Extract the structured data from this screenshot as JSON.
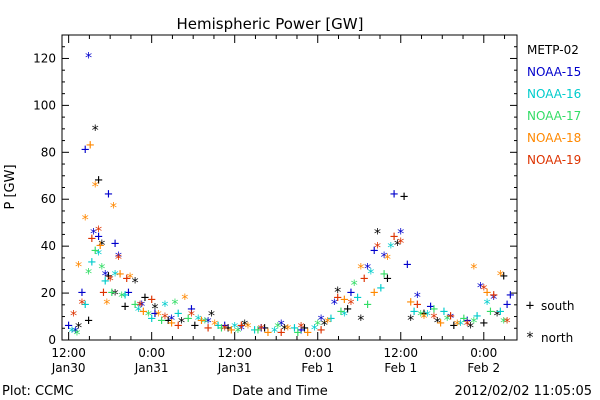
{
  "chart_data": {
    "type": "scatter",
    "title": "Hemispheric Power [GW]",
    "ylabel": "P [GW]",
    "xlabel": "Date and Time",
    "ylim": [
      0,
      130
    ],
    "xlim": [
      -0.04,
      2.7
    ],
    "x_unit": "days since 2012-01-30 12:00",
    "yticks": [
      0,
      20,
      40,
      60,
      80,
      100,
      120
    ],
    "xticks": [
      {
        "at": 0.0,
        "line1": "12:00",
        "line2": "Jan30"
      },
      {
        "at": 0.5,
        "line1": "0:00",
        "line2": "Jan31"
      },
      {
        "at": 1.0,
        "line1": "12:00",
        "line2": "Jan31"
      },
      {
        "at": 1.5,
        "line1": "0:00",
        "line2": "Feb 1"
      },
      {
        "at": 2.0,
        "line1": "12:00",
        "line2": "Feb 1"
      },
      {
        "at": 2.5,
        "line1": "0:00",
        "line2": "Feb 2"
      }
    ],
    "legend_position": "right",
    "marker_legend": [
      {
        "symbol": "+",
        "label": "south"
      },
      {
        "symbol": "*",
        "label": "north"
      }
    ],
    "series": [
      {
        "name": "METP-02",
        "color": "#000000",
        "points": [
          {
            "x": 0.06,
            "y": 5,
            "m": "*"
          },
          {
            "x": 0.12,
            "y": 8,
            "m": "+"
          },
          {
            "x": 0.16,
            "y": 89,
            "m": "*"
          },
          {
            "x": 0.18,
            "y": 68,
            "m": "+"
          },
          {
            "x": 0.2,
            "y": 40,
            "m": "*"
          },
          {
            "x": 0.24,
            "y": 27,
            "m": "+"
          },
          {
            "x": 0.28,
            "y": 19,
            "m": "*"
          },
          {
            "x": 0.34,
            "y": 14,
            "m": "+"
          },
          {
            "x": 0.4,
            "y": 24,
            "m": "*"
          },
          {
            "x": 0.46,
            "y": 18,
            "m": "+"
          },
          {
            "x": 0.52,
            "y": 13,
            "m": "*"
          },
          {
            "x": 0.6,
            "y": 8,
            "m": "+"
          },
          {
            "x": 0.68,
            "y": 7,
            "m": "*"
          },
          {
            "x": 0.76,
            "y": 6,
            "m": "+"
          },
          {
            "x": 0.86,
            "y": 10,
            "m": "*"
          },
          {
            "x": 0.96,
            "y": 5,
            "m": "+"
          },
          {
            "x": 1.06,
            "y": 6,
            "m": "*"
          },
          {
            "x": 1.18,
            "y": 5,
            "m": "+"
          },
          {
            "x": 1.3,
            "y": 4,
            "m": "*"
          },
          {
            "x": 1.42,
            "y": 5,
            "m": "+"
          },
          {
            "x": 1.54,
            "y": 6,
            "m": "*"
          },
          {
            "x": 1.62,
            "y": 20,
            "m": "*"
          },
          {
            "x": 1.68,
            "y": 13,
            "m": "+"
          },
          {
            "x": 1.76,
            "y": 8,
            "m": "*"
          },
          {
            "x": 1.86,
            "y": 45,
            "m": "*"
          },
          {
            "x": 1.92,
            "y": 26,
            "m": "+"
          },
          {
            "x": 1.98,
            "y": 40,
            "m": "*"
          },
          {
            "x": 2.02,
            "y": 61,
            "m": "+"
          },
          {
            "x": 2.06,
            "y": 8,
            "m": "*"
          },
          {
            "x": 2.14,
            "y": 11,
            "m": "+"
          },
          {
            "x": 2.22,
            "y": 7,
            "m": "*"
          },
          {
            "x": 2.32,
            "y": 6,
            "m": "+"
          },
          {
            "x": 2.42,
            "y": 5,
            "m": "*"
          },
          {
            "x": 2.5,
            "y": 7,
            "m": "+"
          },
          {
            "x": 2.58,
            "y": 10,
            "m": "*"
          },
          {
            "x": 2.62,
            "y": 27,
            "m": "+"
          }
        ]
      },
      {
        "name": "NOAA-15",
        "color": "#0000cc",
        "points": [
          {
            "x": 0.0,
            "y": 6,
            "m": "+"
          },
          {
            "x": 0.04,
            "y": 3,
            "m": "*"
          },
          {
            "x": 0.08,
            "y": 20,
            "m": "+"
          },
          {
            "x": 0.1,
            "y": 81,
            "m": "+"
          },
          {
            "x": 0.12,
            "y": 120,
            "m": "*"
          },
          {
            "x": 0.15,
            "y": 45,
            "m": "*"
          },
          {
            "x": 0.18,
            "y": 44,
            "m": "+"
          },
          {
            "x": 0.22,
            "y": 27,
            "m": "*"
          },
          {
            "x": 0.24,
            "y": 62,
            "m": "+"
          },
          {
            "x": 0.28,
            "y": 41,
            "m": "+"
          },
          {
            "x": 0.3,
            "y": 35,
            "m": "*"
          },
          {
            "x": 0.36,
            "y": 20,
            "m": "+"
          },
          {
            "x": 0.44,
            "y": 14,
            "m": "*"
          },
          {
            "x": 0.52,
            "y": 11,
            "m": "+"
          },
          {
            "x": 0.62,
            "y": 8,
            "m": "*"
          },
          {
            "x": 0.74,
            "y": 13,
            "m": "+"
          },
          {
            "x": 0.84,
            "y": 7,
            "m": "*"
          },
          {
            "x": 0.94,
            "y": 6,
            "m": "+"
          },
          {
            "x": 1.04,
            "y": 4,
            "m": "*"
          },
          {
            "x": 1.16,
            "y": 5,
            "m": "+"
          },
          {
            "x": 1.28,
            "y": 6,
            "m": "*"
          },
          {
            "x": 1.4,
            "y": 4,
            "m": "+"
          },
          {
            "x": 1.52,
            "y": 8,
            "m": "*"
          },
          {
            "x": 1.6,
            "y": 15,
            "m": "*"
          },
          {
            "x": 1.7,
            "y": 20,
            "m": "+"
          },
          {
            "x": 1.8,
            "y": 30,
            "m": "*"
          },
          {
            "x": 1.84,
            "y": 38,
            "m": "+"
          },
          {
            "x": 1.9,
            "y": 35,
            "m": "*"
          },
          {
            "x": 1.96,
            "y": 62,
            "m": "+"
          },
          {
            "x": 2.0,
            "y": 45,
            "m": "*"
          },
          {
            "x": 2.04,
            "y": 32,
            "m": "+"
          },
          {
            "x": 2.1,
            "y": 18,
            "m": "*"
          },
          {
            "x": 2.18,
            "y": 14,
            "m": "+"
          },
          {
            "x": 2.3,
            "y": 9,
            "m": "*"
          },
          {
            "x": 2.4,
            "y": 8,
            "m": "+"
          },
          {
            "x": 2.48,
            "y": 22,
            "m": "*"
          },
          {
            "x": 2.56,
            "y": 17,
            "m": "*"
          },
          {
            "x": 2.64,
            "y": 15,
            "m": "+"
          },
          {
            "x": 2.66,
            "y": 19,
            "m": "+"
          }
        ]
      },
      {
        "name": "NOAA-16",
        "color": "#00cccc",
        "points": [
          {
            "x": 0.02,
            "y": 3,
            "m": "*"
          },
          {
            "x": 0.1,
            "y": 15,
            "m": "+"
          },
          {
            "x": 0.14,
            "y": 33,
            "m": "+"
          },
          {
            "x": 0.18,
            "y": 36,
            "m": "*"
          },
          {
            "x": 0.22,
            "y": 25,
            "m": "+"
          },
          {
            "x": 0.28,
            "y": 27,
            "m": "*"
          },
          {
            "x": 0.34,
            "y": 19,
            "m": "+"
          },
          {
            "x": 0.42,
            "y": 12,
            "m": "*"
          },
          {
            "x": 0.5,
            "y": 9,
            "m": "+"
          },
          {
            "x": 0.58,
            "y": 14,
            "m": "*"
          },
          {
            "x": 0.66,
            "y": 11,
            "m": "+"
          },
          {
            "x": 0.78,
            "y": 8,
            "m": "*"
          },
          {
            "x": 0.9,
            "y": 6,
            "m": "+"
          },
          {
            "x": 1.0,
            "y": 5,
            "m": "*"
          },
          {
            "x": 1.12,
            "y": 4,
            "m": "+"
          },
          {
            "x": 1.24,
            "y": 3,
            "m": "*"
          },
          {
            "x": 1.36,
            "y": 5,
            "m": "+"
          },
          {
            "x": 1.48,
            "y": 4,
            "m": "*"
          },
          {
            "x": 1.58,
            "y": 9,
            "m": "+"
          },
          {
            "x": 1.66,
            "y": 10,
            "m": "*"
          },
          {
            "x": 1.74,
            "y": 18,
            "m": "+"
          },
          {
            "x": 1.82,
            "y": 28,
            "m": "*"
          },
          {
            "x": 1.88,
            "y": 22,
            "m": "+"
          },
          {
            "x": 1.94,
            "y": 39,
            "m": "*"
          },
          {
            "x": 2.08,
            "y": 12,
            "m": "+"
          },
          {
            "x": 2.16,
            "y": 10,
            "m": "*"
          },
          {
            "x": 2.26,
            "y": 12,
            "m": "+"
          },
          {
            "x": 2.36,
            "y": 6,
            "m": "*"
          },
          {
            "x": 2.46,
            "y": 10,
            "m": "+"
          },
          {
            "x": 2.52,
            "y": 15,
            "m": "*"
          },
          {
            "x": 2.6,
            "y": 12,
            "m": "+"
          }
        ]
      },
      {
        "name": "NOAA-17",
        "color": "#33dd66",
        "points": [
          {
            "x": 0.05,
            "y": 2,
            "m": "*"
          },
          {
            "x": 0.12,
            "y": 28,
            "m": "*"
          },
          {
            "x": 0.16,
            "y": 38,
            "m": "+"
          },
          {
            "x": 0.2,
            "y": 30,
            "m": "*"
          },
          {
            "x": 0.26,
            "y": 20,
            "m": "+"
          },
          {
            "x": 0.32,
            "y": 18,
            "m": "*"
          },
          {
            "x": 0.4,
            "y": 15,
            "m": "+"
          },
          {
            "x": 0.48,
            "y": 10,
            "m": "*"
          },
          {
            "x": 0.56,
            "y": 8,
            "m": "+"
          },
          {
            "x": 0.64,
            "y": 15,
            "m": "*"
          },
          {
            "x": 0.72,
            "y": 9,
            "m": "+"
          },
          {
            "x": 0.82,
            "y": 7,
            "m": "*"
          },
          {
            "x": 0.92,
            "y": 5,
            "m": "+"
          },
          {
            "x": 1.02,
            "y": 3,
            "m": "*"
          },
          {
            "x": 1.14,
            "y": 4,
            "m": "+"
          },
          {
            "x": 1.26,
            "y": 5,
            "m": "*"
          },
          {
            "x": 1.38,
            "y": 3,
            "m": "+"
          },
          {
            "x": 1.5,
            "y": 6,
            "m": "*"
          },
          {
            "x": 1.64,
            "y": 12,
            "m": "+"
          },
          {
            "x": 1.72,
            "y": 23,
            "m": "*"
          },
          {
            "x": 1.8,
            "y": 15,
            "m": "+"
          },
          {
            "x": 1.9,
            "y": 28,
            "m": "+"
          },
          {
            "x": 2.12,
            "y": 10,
            "m": "*"
          },
          {
            "x": 2.2,
            "y": 13,
            "m": "+"
          },
          {
            "x": 2.28,
            "y": 8,
            "m": "*"
          },
          {
            "x": 2.38,
            "y": 9,
            "m": "+"
          },
          {
            "x": 2.44,
            "y": 7,
            "m": "*"
          },
          {
            "x": 2.54,
            "y": 12,
            "m": "+"
          },
          {
            "x": 2.62,
            "y": 7,
            "m": "*"
          }
        ]
      },
      {
        "name": "NOAA-18",
        "color": "#ff8800",
        "points": [
          {
            "x": 0.06,
            "y": 31,
            "m": "*"
          },
          {
            "x": 0.1,
            "y": 51,
            "m": "*"
          },
          {
            "x": 0.13,
            "y": 83,
            "m": "+"
          },
          {
            "x": 0.16,
            "y": 65,
            "m": "*"
          },
          {
            "x": 0.19,
            "y": 40,
            "m": "+"
          },
          {
            "x": 0.23,
            "y": 15,
            "m": "*"
          },
          {
            "x": 0.27,
            "y": 56,
            "m": "*"
          },
          {
            "x": 0.31,
            "y": 28,
            "m": "+"
          },
          {
            "x": 0.37,
            "y": 26,
            "m": "*"
          },
          {
            "x": 0.45,
            "y": 12,
            "m": "+"
          },
          {
            "x": 0.54,
            "y": 10,
            "m": "*"
          },
          {
            "x": 0.62,
            "y": 7,
            "m": "+"
          },
          {
            "x": 0.7,
            "y": 17,
            "m": "*"
          },
          {
            "x": 0.8,
            "y": 8,
            "m": "+"
          },
          {
            "x": 0.88,
            "y": 6,
            "m": "*"
          },
          {
            "x": 0.98,
            "y": 4,
            "m": "+"
          },
          {
            "x": 1.08,
            "y": 5,
            "m": "*"
          },
          {
            "x": 1.2,
            "y": 3,
            "m": "+"
          },
          {
            "x": 1.32,
            "y": 4,
            "m": "*"
          },
          {
            "x": 1.44,
            "y": 3,
            "m": "+"
          },
          {
            "x": 1.56,
            "y": 7,
            "m": "*"
          },
          {
            "x": 1.66,
            "y": 17,
            "m": "+"
          },
          {
            "x": 1.76,
            "y": 30,
            "m": "*"
          },
          {
            "x": 1.84,
            "y": 20,
            "m": "+"
          },
          {
            "x": 1.92,
            "y": 34,
            "m": "*"
          },
          {
            "x": 2.06,
            "y": 16,
            "m": "+"
          },
          {
            "x": 2.14,
            "y": 9,
            "m": "*"
          },
          {
            "x": 2.24,
            "y": 7,
            "m": "+"
          },
          {
            "x": 2.34,
            "y": 6,
            "m": "*"
          },
          {
            "x": 2.44,
            "y": 30,
            "m": "*"
          },
          {
            "x": 2.52,
            "y": 20,
            "m": "+"
          },
          {
            "x": 2.6,
            "y": 27,
            "m": "*"
          }
        ]
      },
      {
        "name": "NOAA-19",
        "color": "#dd3300",
        "points": [
          {
            "x": 0.03,
            "y": 10,
            "m": "*"
          },
          {
            "x": 0.08,
            "y": 15,
            "m": "*"
          },
          {
            "x": 0.14,
            "y": 43,
            "m": "+"
          },
          {
            "x": 0.18,
            "y": 46,
            "m": "*"
          },
          {
            "x": 0.21,
            "y": 20,
            "m": "+"
          },
          {
            "x": 0.25,
            "y": 25,
            "m": "*"
          },
          {
            "x": 0.3,
            "y": 34,
            "m": "*"
          },
          {
            "x": 0.35,
            "y": 26,
            "m": "+"
          },
          {
            "x": 0.43,
            "y": 14,
            "m": "*"
          },
          {
            "x": 0.5,
            "y": 17,
            "m": "+"
          },
          {
            "x": 0.58,
            "y": 9,
            "m": "*"
          },
          {
            "x": 0.66,
            "y": 6,
            "m": "+"
          },
          {
            "x": 0.74,
            "y": 10,
            "m": "*"
          },
          {
            "x": 0.84,
            "y": 5,
            "m": "+"
          },
          {
            "x": 0.94,
            "y": 4,
            "m": "*"
          },
          {
            "x": 1.04,
            "y": 6,
            "m": "+"
          },
          {
            "x": 1.16,
            "y": 4,
            "m": "*"
          },
          {
            "x": 1.28,
            "y": 3,
            "m": "+"
          },
          {
            "x": 1.4,
            "y": 5,
            "m": "*"
          },
          {
            "x": 1.52,
            "y": 4,
            "m": "+"
          },
          {
            "x": 1.62,
            "y": 18,
            "m": "+"
          },
          {
            "x": 1.7,
            "y": 15,
            "m": "*"
          },
          {
            "x": 1.78,
            "y": 26,
            "m": "+"
          },
          {
            "x": 1.86,
            "y": 39,
            "m": "*"
          },
          {
            "x": 1.96,
            "y": 44,
            "m": "+"
          },
          {
            "x": 2.0,
            "y": 41,
            "m": "*"
          },
          {
            "x": 2.1,
            "y": 15,
            "m": "+"
          },
          {
            "x": 2.2,
            "y": 9,
            "m": "*"
          },
          {
            "x": 2.3,
            "y": 10,
            "m": "+"
          },
          {
            "x": 2.4,
            "y": 6,
            "m": "*"
          },
          {
            "x": 2.5,
            "y": 21,
            "m": "*"
          },
          {
            "x": 2.56,
            "y": 19,
            "m": "+"
          },
          {
            "x": 2.64,
            "y": 7,
            "m": "*"
          }
        ]
      }
    ]
  },
  "footer": {
    "plot_credit": "Plot: CCMC",
    "timestamp": "2012/02/02 11:05:05"
  }
}
